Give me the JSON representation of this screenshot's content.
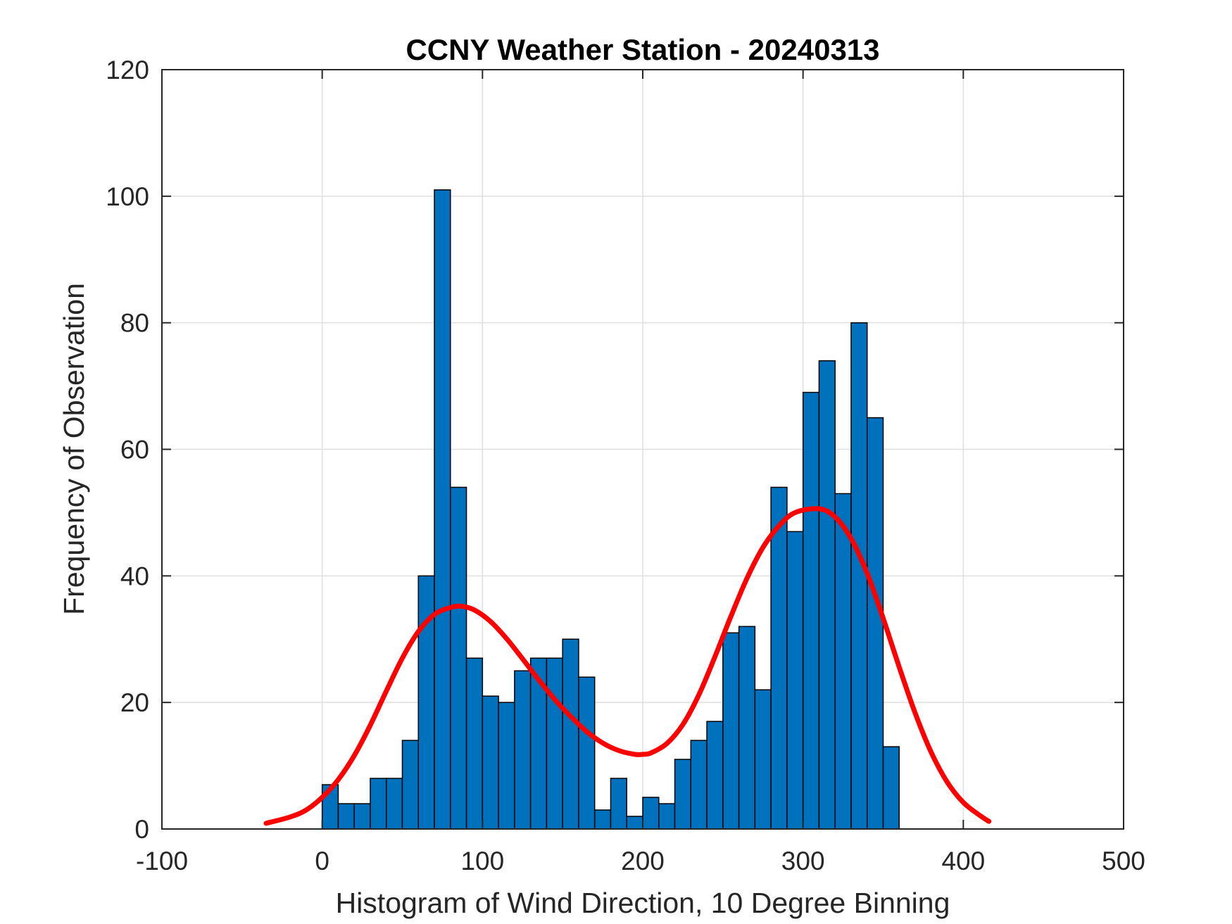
{
  "chart_data": {
    "type": "bar",
    "title": "CCNY Weather Station - 20240313",
    "xlabel": "Histogram of Wind Direction, 10 Degree Binning",
    "ylabel": "Frequency of Observation",
    "xlim": [
      -100,
      500
    ],
    "ylim": [
      0,
      120
    ],
    "xticks": [
      -100,
      0,
      100,
      200,
      300,
      400,
      500
    ],
    "xtick_labels": [
      "-100",
      "0",
      "100",
      "200",
      "300",
      "400",
      "500"
    ],
    "yticks": [
      0,
      20,
      40,
      60,
      80,
      100,
      120
    ],
    "ytick_labels": [
      "0",
      "20",
      "40",
      "60",
      "80",
      "100",
      "120"
    ],
    "grid": true,
    "bin_width": 10,
    "bin_edges": [
      0,
      10,
      20,
      30,
      40,
      50,
      60,
      70,
      80,
      90,
      100,
      110,
      120,
      130,
      140,
      150,
      160,
      170,
      180,
      190,
      200,
      210,
      220,
      230,
      240,
      250,
      260,
      270,
      280,
      290,
      300,
      310,
      320,
      330,
      340,
      350,
      360
    ],
    "values": [
      7,
      4,
      4,
      8,
      8,
      14,
      40,
      101,
      54,
      27,
      21,
      20,
      25,
      27,
      27,
      30,
      24,
      3,
      8,
      2,
      5,
      4,
      11,
      14,
      17,
      31,
      32,
      22,
      54,
      47,
      69,
      74,
      53,
      80,
      65,
      13
    ],
    "fit_curve": {
      "x": [
        -35,
        -20,
        -10,
        0,
        10,
        20,
        30,
        40,
        50,
        60,
        70,
        80,
        87,
        95,
        105,
        115,
        125,
        135,
        145,
        155,
        165,
        175,
        185,
        195,
        200,
        205,
        215,
        225,
        235,
        245,
        255,
        265,
        275,
        285,
        295,
        310,
        320,
        330,
        340,
        350,
        360,
        370,
        380,
        390,
        400,
        410,
        416
      ],
      "y": [
        0.9,
        1.9,
        3.0,
        5.0,
        7.8,
        11.6,
        16.4,
        21.8,
        27.0,
        31.2,
        33.9,
        35.0,
        35.2,
        34.6,
        32.8,
        30.1,
        26.9,
        23.6,
        20.5,
        17.8,
        15.4,
        13.6,
        12.4,
        11.8,
        11.8,
        12.0,
        13.5,
        16.5,
        21.2,
        27.2,
        33.6,
        39.6,
        44.5,
        47.9,
        50.0,
        50.6,
        49.3,
        45.9,
        40.4,
        33.3,
        25.6,
        18.3,
        12.1,
        7.4,
        4.2,
        2.2,
        1.2
      ]
    },
    "colors": {
      "bar_fill": "#0072BD",
      "bar_edge": "#000000",
      "fit_line": "#FF0000",
      "grid": "#DFDFDF",
      "axes": "#262626"
    }
  }
}
